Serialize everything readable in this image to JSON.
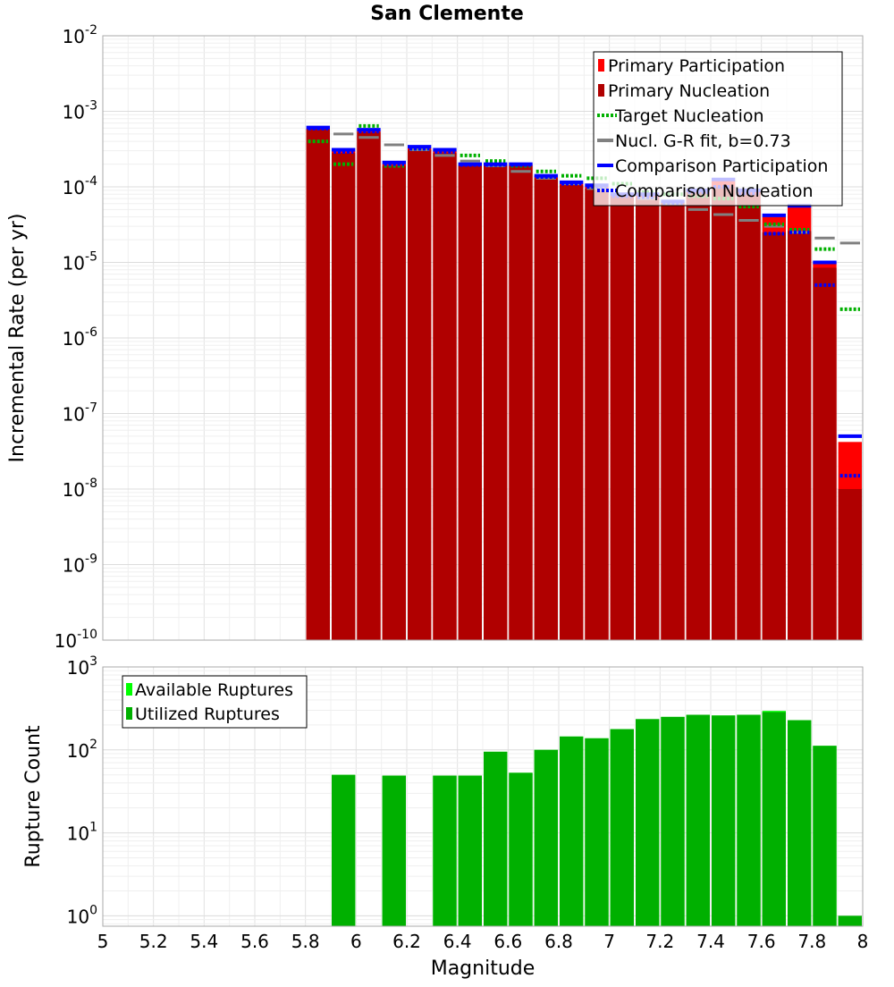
{
  "chart_data": [
    {
      "type": "bar",
      "title": "San Clemente",
      "xlabel": "",
      "ylabel": "Incremental Rate (per yr)",
      "yscale": "log",
      "xlim": [
        5.0,
        8.0
      ],
      "ylim": [
        1e-10,
        0.01
      ],
      "y_ticks": [
        {
          "base": "10",
          "exp": "-2",
          "value": 0.01
        },
        {
          "base": "10",
          "exp": "-3",
          "value": 0.001
        },
        {
          "base": "10",
          "exp": "-4",
          "value": 0.0001
        },
        {
          "base": "10",
          "exp": "-5",
          "value": 1e-05
        },
        {
          "base": "10",
          "exp": "-6",
          "value": 1e-06
        },
        {
          "base": "10",
          "exp": "-7",
          "value": 1e-07
        },
        {
          "base": "10",
          "exp": "-8",
          "value": 1e-08
        },
        {
          "base": "10",
          "exp": "-9",
          "value": 1e-09
        },
        {
          "base": "10",
          "exp": "-10",
          "value": 1e-10
        }
      ],
      "bin_width": 0.1,
      "magnitudes": [
        5.85,
        5.95,
        6.05,
        6.15,
        6.25,
        6.35,
        6.45,
        6.55,
        6.65,
        6.75,
        6.85,
        6.95,
        7.05,
        7.15,
        7.25,
        7.35,
        7.45,
        7.55,
        7.65,
        7.75,
        7.85,
        7.95
      ],
      "legend_position": "top-right",
      "legend": [
        {
          "label": "Primary Participation",
          "color": "#ff0000",
          "style": "box"
        },
        {
          "label": "Primary Nucleation",
          "color": "#b00000",
          "style": "box"
        },
        {
          "label": " Target Nucleation",
          "color": "#00b000",
          "style": "dotted"
        },
        {
          "label": "Nucl. G-R fit, b=0.73",
          "color": "#808080",
          "style": "line"
        },
        {
          "label": "Comparison Participation",
          "color": "#0000ff",
          "style": "line"
        },
        {
          "label": "Comparison Nucleation",
          "color": "#0000ff",
          "style": "dotted"
        }
      ],
      "series": [
        {
          "name": "Primary Participation",
          "color": "#ff0000",
          "values": [
            0.0006,
            0.0003,
            0.00056,
            0.0002,
            0.00033,
            0.0003,
            0.0002,
            0.0002,
            0.0002,
            0.00014,
            0.00011,
            0.0001,
            8e-05,
            8e-05,
            6.3e-05,
            9e-05,
            0.00012,
            9e-05,
            4e-05,
            5.5e-05,
            1e-05,
            4.2e-08
          ]
        },
        {
          "name": "Primary Nucleation",
          "color": "#b00000",
          "values": [
            0.00058,
            0.00028,
            0.00053,
            0.00019,
            0.00031,
            0.00028,
            0.00019,
            0.00019,
            0.00019,
            0.00013,
            0.000105,
            9.5e-05,
            7.5e-05,
            7.2e-05,
            6e-05,
            8.5e-05,
            0.0001,
            8e-05,
            2.5e-05,
            2.6e-05,
            8.5e-06,
            1e-08
          ]
        },
        {
          "name": " Target Nucleation",
          "color": "#00b000",
          "values": [
            0.0004,
            0.0002,
            0.00064,
            0.00019,
            0.00032,
            0.0003,
            0.00026,
            0.00022,
            0.00019,
            0.00016,
            0.00014,
            0.00013,
            0.00011,
            8.5e-05,
            8e-05,
            7.5e-05,
            7e-05,
            5.5e-05,
            3.2e-05,
            2.7e-05,
            1.5e-05,
            2.4e-06
          ]
        },
        {
          "name": "Nucl. G-R fit, b=0.73",
          "color": "#808080",
          "values": [
            null,
            0.0005,
            0.00045,
            0.00036,
            0.00031,
            0.00026,
            0.00022,
            0.00019,
            0.00016,
            0.00013,
            0.00011,
            9.5e-05,
            8e-05,
            7e-05,
            6e-05,
            5e-05,
            4.3e-05,
            3.6e-05,
            3e-05,
            2.5e-05,
            2.1e-05,
            1.8e-05
          ]
        },
        {
          "name": "Comparison Participation",
          "color": "#0000ff",
          "values": [
            0.00061,
            0.00031,
            0.00057,
            0.00021,
            0.00034,
            0.00031,
            0.0002,
            0.0002,
            0.0002,
            0.00014,
            0.000115,
            0.000105,
            8e-05,
            8e-05,
            6.4e-05,
            9e-05,
            0.000125,
            9e-05,
            4.2e-05,
            5.6e-05,
            1e-05,
            5e-08
          ]
        },
        {
          "name": "Comparison Nucleation",
          "color": "#0000ff",
          "values": [
            0.00059,
            0.00029,
            0.00054,
            0.0002,
            0.00032,
            0.00029,
            0.000195,
            0.000195,
            0.000195,
            0.000135,
            0.00011,
            0.0001,
            7.5e-05,
            7.3e-05,
            6.1e-05,
            8.5e-05,
            0.0001,
            8.2e-05,
            2.4e-05,
            2.5e-05,
            5e-06,
            1.5e-08
          ]
        }
      ]
    },
    {
      "type": "bar",
      "title": "",
      "xlabel": "Magnitude",
      "ylabel": "Rupture Count",
      "yscale": "log",
      "xlim": [
        5.0,
        8.0
      ],
      "ylim": [
        0.75,
        1000
      ],
      "y_ticks": [
        {
          "base": "10",
          "exp": "3",
          "value": 1000
        },
        {
          "base": "10",
          "exp": "2",
          "value": 100
        },
        {
          "base": "10",
          "exp": "1",
          "value": 10
        },
        {
          "base": "10",
          "exp": "0",
          "value": 1
        }
      ],
      "x_ticks": [
        "5",
        "5.2",
        "5.4",
        "5.6",
        "5.8",
        "6",
        "6.2",
        "6.4",
        "6.6",
        "6.8",
        "7",
        "7.2",
        "7.4",
        "7.6",
        "7.8",
        "8"
      ],
      "bin_width": 0.1,
      "magnitudes": [
        5.95,
        6.15,
        6.35,
        6.45,
        6.55,
        6.65,
        6.75,
        6.85,
        6.95,
        7.05,
        7.15,
        7.25,
        7.35,
        7.45,
        7.55,
        7.65,
        7.75,
        7.85,
        7.95
      ],
      "legend_position": "top-left",
      "legend": [
        {
          "label": "Available Ruptures",
          "color": "#00ff00",
          "style": "box"
        },
        {
          "label": "Utilized Ruptures",
          "color": "#00b000",
          "style": "box"
        }
      ],
      "series": [
        {
          "name": "Available Ruptures",
          "color": "#00ff00",
          "values": [
            50,
            49,
            49,
            49,
            95,
            53,
            100,
            145,
            138,
            178,
            235,
            250,
            265,
            260,
            265,
            295,
            228,
            112,
            1
          ]
        },
        {
          "name": "Utilized Ruptures",
          "color": "#00b000",
          "values": [
            50,
            49,
            49,
            49,
            95,
            53,
            100,
            145,
            138,
            178,
            235,
            250,
            265,
            260,
            265,
            285,
            228,
            112,
            1
          ]
        }
      ]
    }
  ]
}
